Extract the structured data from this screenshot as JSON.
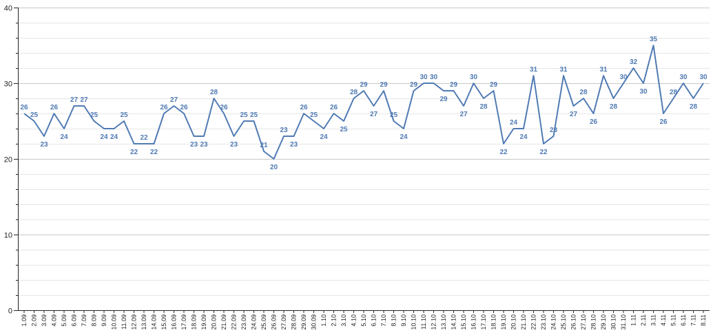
{
  "chart_data": {
    "type": "line",
    "title": "",
    "xlabel": "",
    "ylabel": "",
    "ylim": [
      0,
      40
    ],
    "yticks": [
      0,
      10,
      20,
      30,
      40
    ],
    "grid": true,
    "colors": {
      "series": "#4f7ab3",
      "label": "#4f7ab3",
      "grid": "#c8c8c8",
      "minor_grid": "#e6e6e6",
      "axis": "#222222"
    },
    "categories": [
      "1.09",
      "2.09",
      "3.09",
      "4.09",
      "5.09",
      "6.09",
      "7.09",
      "8.09",
      "9.09",
      "10.09",
      "11.09",
      "12.09",
      "13.09",
      "14.09",
      "15.09",
      "16.09",
      "17.09",
      "18.09",
      "19.09",
      "20.09",
      "21.09",
      "22.09",
      "23.09",
      "24.09",
      "25.09",
      "26.09",
      "27.09",
      "28.09",
      "29.09",
      "30.09",
      "1.10",
      "2.10",
      "3.10",
      "4.10",
      "5.10",
      "6.10",
      "7.10",
      "8.10",
      "9.10",
      "10.10",
      "11.10",
      "12.10",
      "13.10",
      "14.10",
      "15.10",
      "16.10",
      "17.10",
      "18.10",
      "19.10",
      "20.10",
      "21.10",
      "22.10",
      "23.10",
      "24.10",
      "25.10",
      "26.10",
      "27.10",
      "28.10",
      "29.10",
      "30.10",
      "31.10",
      "1.11",
      "2.11",
      "3.11",
      "4.11",
      "5.11",
      "6.11",
      "7.11",
      "8.11"
    ],
    "series": [
      {
        "values": [
          26,
          25,
          23,
          26,
          24,
          27,
          27,
          25,
          24,
          24,
          25,
          22,
          22,
          22,
          26,
          27,
          26,
          23,
          23,
          28,
          26,
          23,
          25,
          25,
          21,
          20,
          23,
          23,
          26,
          25,
          24,
          26,
          25,
          28,
          29,
          27,
          29,
          25,
          24,
          29,
          30,
          30,
          29,
          29,
          27,
          30,
          28,
          29,
          22,
          24,
          24,
          31,
          22,
          23,
          31,
          27,
          28,
          26,
          31,
          28,
          30,
          32,
          30,
          35,
          26,
          28,
          30,
          28,
          30
        ]
      }
    ]
  }
}
